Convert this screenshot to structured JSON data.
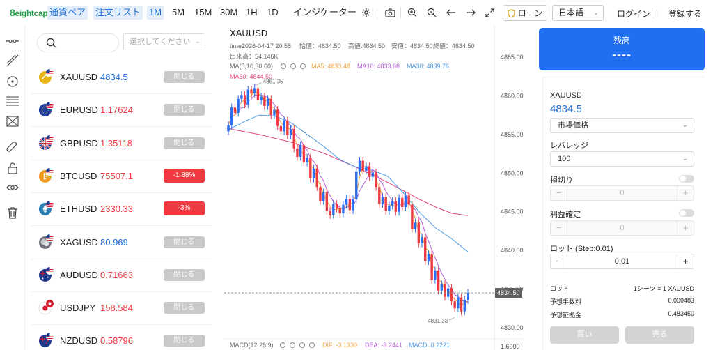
{
  "header": {
    "logo_text": "eightcap",
    "currency_pair": "通貨ペア",
    "order_list": "注文リスト",
    "timeframes": [
      "1M",
      "5M",
      "15M",
      "30M",
      "1H",
      "1D"
    ],
    "active_timeframe": "1M",
    "indicator": "インジケーター",
    "loan": "ローン",
    "language": "日本語",
    "login": "ログイン",
    "separator": "|",
    "register": "登録する"
  },
  "tools": [
    "horizontal-line-icon",
    "trend-line-icon",
    "circle-target-icon",
    "fib-lines-icon",
    "pattern-icon",
    "magnet-icon",
    "lock-icon",
    "eye-icon",
    "trash-icon"
  ],
  "sidebar": {
    "filter_placeholder": "選択してください",
    "close_label": "閉じる",
    "symbols": [
      {
        "name": "XAUUSD",
        "price": "4834.5",
        "price_color": "#1e6fd9",
        "badge": "閉じる",
        "badge_type": "grey",
        "flag": "gold"
      },
      {
        "name": "EURUSD",
        "price": "1.17624",
        "price_color": "#ee3a40",
        "badge": "閉じる",
        "badge_type": "grey",
        "flag": "eu"
      },
      {
        "name": "GBPUSD",
        "price": "1.35118",
        "price_color": "#ee3a40",
        "badge": "閉じる",
        "badge_type": "grey",
        "flag": "gb"
      },
      {
        "name": "BTCUSD",
        "price": "75507.1",
        "price_color": "#ee3a40",
        "badge": "-1.88%",
        "badge_type": "red",
        "flag": "btc"
      },
      {
        "name": "ETHUSD",
        "price": "2330.33",
        "price_color": "#ee3a40",
        "badge": "-3%",
        "badge_type": "red",
        "flag": "eth"
      },
      {
        "name": "XAGUSD",
        "price": "80.969",
        "price_color": "#1e6fd9",
        "badge": "閉じる",
        "badge_type": "grey",
        "flag": "silver"
      },
      {
        "name": "AUDUSD",
        "price": "0.71663",
        "price_color": "#ee3a40",
        "badge": "閉じる",
        "badge_type": "grey",
        "flag": "au"
      },
      {
        "name": "USDJPY",
        "price": "158.584",
        "price_color": "#ee3a40",
        "badge": "閉じる",
        "badge_type": "grey",
        "flag": "jp"
      },
      {
        "name": "NZDUSD",
        "price": "0.58796",
        "price_color": "#ee3a40",
        "badge": "閉じる",
        "badge_type": "grey",
        "flag": "nz"
      }
    ]
  },
  "chart": {
    "symbol": "XAUUSD",
    "time_label": "time2026-04-17 20:55",
    "open": "始値：4834.50",
    "high": "高値:4834.50",
    "low": "安値：4834.50",
    "close": "終値：4834.50",
    "volume": "出来高：54.146K",
    "ma_label": "MA(5,10,30,60)",
    "ma5": "MA5: 4833.48",
    "ma10": "MA10: 4833.98",
    "ma30": "MA30: 4839.76",
    "ma60": "MA60: 4844.50",
    "macd_label": "MACD(12,26,9)",
    "dif": "DIF: -3.1330",
    "dea": "DEA: -3.2441",
    "macd": "MACD: 0.2221",
    "current_price": "4834.50",
    "high_marker": "4861.35",
    "low_marker": "4831.33",
    "y_ticks": [
      "4865.00",
      "4860.00",
      "4855.00",
      "4850.00",
      "4845.00",
      "4840.00",
      "4835.00",
      "4830.00"
    ],
    "macd_tick": "1.6000",
    "colors": {
      "up": "#2b6ef0",
      "down": "#ee3a40",
      "ma5": "#f2a33a",
      "ma10": "#b45ed8",
      "ma30": "#4a9ae8",
      "ma60": "#e4467a"
    }
  },
  "chart_data": {
    "type": "candlestick",
    "y_range": [
      4829,
      4866
    ],
    "closes": [
      4856.2,
      4858.5,
      4857.8,
      4859.6,
      4860.1,
      4858.9,
      4860.8,
      4860.3,
      4861.0,
      4859.4,
      4859.9,
      4858.7,
      4859.6,
      4857.5,
      4858.2,
      4856.1,
      4855.4,
      4856.8,
      4854.9,
      4855.7,
      4853.2,
      4852.1,
      4853.6,
      4851.4,
      4852.0,
      4849.3,
      4850.6,
      4848.2,
      4846.4,
      4847.5,
      4845.1,
      4844.6,
      4846.0,
      4845.4,
      4844.8,
      4845.9,
      4846.7,
      4845.2,
      4846.6,
      4850.2,
      4851.6,
      4850.3,
      4850.9,
      4849.5,
      4850.1,
      4848.2,
      4846.0,
      4846.9,
      4845.1,
      4845.8,
      4846.4,
      4845.0,
      4846.8,
      4845.6,
      4847.1,
      4845.9,
      4842.8,
      4843.6,
      4840.9,
      4841.7,
      4838.6,
      4839.5,
      4836.2,
      4837.4,
      4834.8,
      4835.6,
      4834.0,
      4835.1,
      4833.4,
      4832.5,
      4833.9,
      4832.1,
      4833.6,
      4834.5
    ],
    "ma60": [
      4855.8,
      4855.4,
      4855.0,
      4854.5,
      4854.0,
      4853.3,
      4852.6,
      4851.7,
      4850.8,
      4849.8,
      4848.8,
      4847.7,
      4846.6,
      4845.6,
      4844.8,
      4844.5
    ],
    "ma30": [
      4855.5,
      4856.6,
      4857.5,
      4857.4,
      4856.5,
      4855.0,
      4853.5,
      4851.8,
      4850.8,
      4850.4,
      4849.6,
      4847.4,
      4844.9,
      4842.9,
      4841.5,
      4839.8
    ]
  },
  "order": {
    "balance_label": "残高",
    "balance_value": "----",
    "symbol": "XAUUSD",
    "price": "4834.5",
    "order_type": "市場価格",
    "leverage_label": "レバレッジ",
    "leverage": "100",
    "stop_loss_label": "損切り",
    "stop_loss_value": "0",
    "take_profit_label": "利益確定",
    "take_profit_value": "0",
    "lot_label": "ロット (Step:0.01)",
    "lot_value": "0.01",
    "lot_info_label": "ロット",
    "lot_info_value": "1シーツ = 1 XAUUSD",
    "fee_label": "予想手数料",
    "fee_value": "0.000483",
    "margin_label": "予想証拠金",
    "margin_value": "0.483450",
    "buy": "買い",
    "sell": "売る",
    "minus": "−",
    "plus": "+"
  }
}
